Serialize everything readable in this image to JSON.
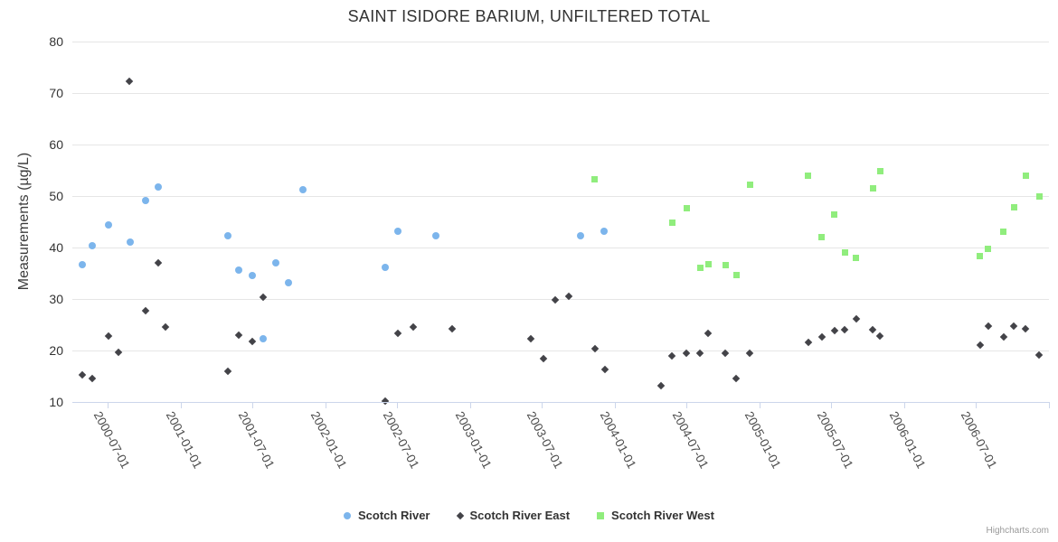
{
  "chart": {
    "credits_label": "Highcharts.com"
  },
  "chart_data": {
    "type": "scatter",
    "title": "SAINT ISIDORE BARIUM, UNFILTERED TOTAL",
    "xlabel": "",
    "ylabel": "Measurements (µg/L)",
    "ylim": [
      10,
      80
    ],
    "yticks": [
      10,
      20,
      30,
      40,
      50,
      60,
      70,
      80
    ],
    "xlim": [
      "2000-04-01",
      "2007-01-01"
    ],
    "xticks": [
      "2000-07-01",
      "2001-01-01",
      "2001-07-01",
      "2002-01-01",
      "2002-07-01",
      "2003-01-01",
      "2003-07-01",
      "2004-01-01",
      "2004-07-01",
      "2005-01-01",
      "2005-07-01",
      "2006-01-01",
      "2006-07-01"
    ],
    "edge_tick": "2007-01-01",
    "grid": true,
    "legend_position": "bottom",
    "colors": {
      "grid": "#e6e6e6",
      "axis": "#ccd6eb"
    },
    "series": [
      {
        "name": "Scotch River",
        "color": "#7cb5ec",
        "marker": "circle",
        "points": [
          [
            "2000-04-26",
            36.6
          ],
          [
            "2000-05-22",
            40.4
          ],
          [
            "2000-07-01",
            44.4
          ],
          [
            "2000-08-25",
            41.0
          ],
          [
            "2000-10-02",
            49.2
          ],
          [
            "2000-11-03",
            51.8
          ],
          [
            "2001-04-29",
            42.3
          ],
          [
            "2001-05-26",
            35.6
          ],
          [
            "2001-06-30",
            34.6
          ],
          [
            "2001-07-27",
            22.3
          ],
          [
            "2001-08-27",
            37.0
          ],
          [
            "2001-09-29",
            33.2
          ],
          [
            "2001-11-05",
            51.2
          ],
          [
            "2002-05-30",
            36.2
          ],
          [
            "2002-07-03",
            43.2
          ],
          [
            "2002-10-06",
            42.3
          ],
          [
            "2003-10-06",
            42.3
          ],
          [
            "2003-12-05",
            43.2
          ]
        ]
      },
      {
        "name": "Scotch River East",
        "color": "#434348",
        "marker": "diamond",
        "points": [
          [
            "2000-04-26",
            15.3
          ],
          [
            "2000-05-22",
            14.5
          ],
          [
            "2000-07-01",
            22.8
          ],
          [
            "2000-07-26",
            19.6
          ],
          [
            "2000-08-22",
            72.3
          ],
          [
            "2000-10-02",
            27.8
          ],
          [
            "2000-11-03",
            37.0
          ],
          [
            "2000-11-22",
            24.5
          ],
          [
            "2001-04-29",
            16.0
          ],
          [
            "2001-05-26",
            23.0
          ],
          [
            "2001-06-29",
            21.8
          ],
          [
            "2001-07-27",
            30.4
          ],
          [
            "2002-05-30",
            10.1
          ],
          [
            "2002-07-03",
            23.4
          ],
          [
            "2002-08-09",
            24.5
          ],
          [
            "2002-11-17",
            24.2
          ],
          [
            "2003-06-02",
            22.3
          ],
          [
            "2003-07-05",
            18.4
          ],
          [
            "2003-08-03",
            29.8
          ],
          [
            "2003-09-07",
            30.5
          ],
          [
            "2003-11-11",
            20.3
          ],
          [
            "2003-12-06",
            16.3
          ],
          [
            "2004-04-27",
            13.2
          ],
          [
            "2004-05-23",
            19.0
          ],
          [
            "2004-06-30",
            19.5
          ],
          [
            "2004-08-03",
            19.5
          ],
          [
            "2004-08-23",
            23.3
          ],
          [
            "2004-10-06",
            19.5
          ],
          [
            "2004-11-03",
            14.6
          ],
          [
            "2004-12-07",
            19.5
          ],
          [
            "2005-05-03",
            21.5
          ],
          [
            "2005-06-06",
            22.6
          ],
          [
            "2005-07-08",
            23.8
          ],
          [
            "2005-08-03",
            24.0
          ],
          [
            "2005-09-01",
            26.2
          ],
          [
            "2005-10-13",
            24.0
          ],
          [
            "2005-11-01",
            22.8
          ],
          [
            "2006-07-11",
            21.0
          ],
          [
            "2006-08-01",
            24.7
          ],
          [
            "2006-09-08",
            22.6
          ],
          [
            "2006-10-05",
            24.7
          ],
          [
            "2006-11-03",
            24.2
          ],
          [
            "2006-12-07",
            19.2
          ]
        ]
      },
      {
        "name": "Scotch River West",
        "color": "#90ed7d",
        "marker": "square",
        "points": [
          [
            "2003-11-10",
            53.2
          ],
          [
            "2004-05-24",
            44.9
          ],
          [
            "2004-07-01",
            47.6
          ],
          [
            "2004-08-03",
            36.1
          ],
          [
            "2004-08-24",
            36.7
          ],
          [
            "2004-10-06",
            36.6
          ],
          [
            "2004-11-03",
            34.7
          ],
          [
            "2004-12-07",
            52.2
          ],
          [
            "2005-05-03",
            54.0
          ],
          [
            "2005-06-06",
            42.1
          ],
          [
            "2005-07-08",
            46.4
          ],
          [
            "2005-08-03",
            39.0
          ],
          [
            "2005-09-01",
            38.0
          ],
          [
            "2005-10-13",
            51.5
          ],
          [
            "2005-11-01",
            54.9
          ],
          [
            "2006-07-11",
            38.4
          ],
          [
            "2006-08-01",
            39.7
          ],
          [
            "2006-09-08",
            43.0
          ],
          [
            "2006-10-05",
            47.8
          ],
          [
            "2006-11-03",
            53.9
          ],
          [
            "2006-12-07",
            50.0
          ]
        ]
      }
    ]
  }
}
